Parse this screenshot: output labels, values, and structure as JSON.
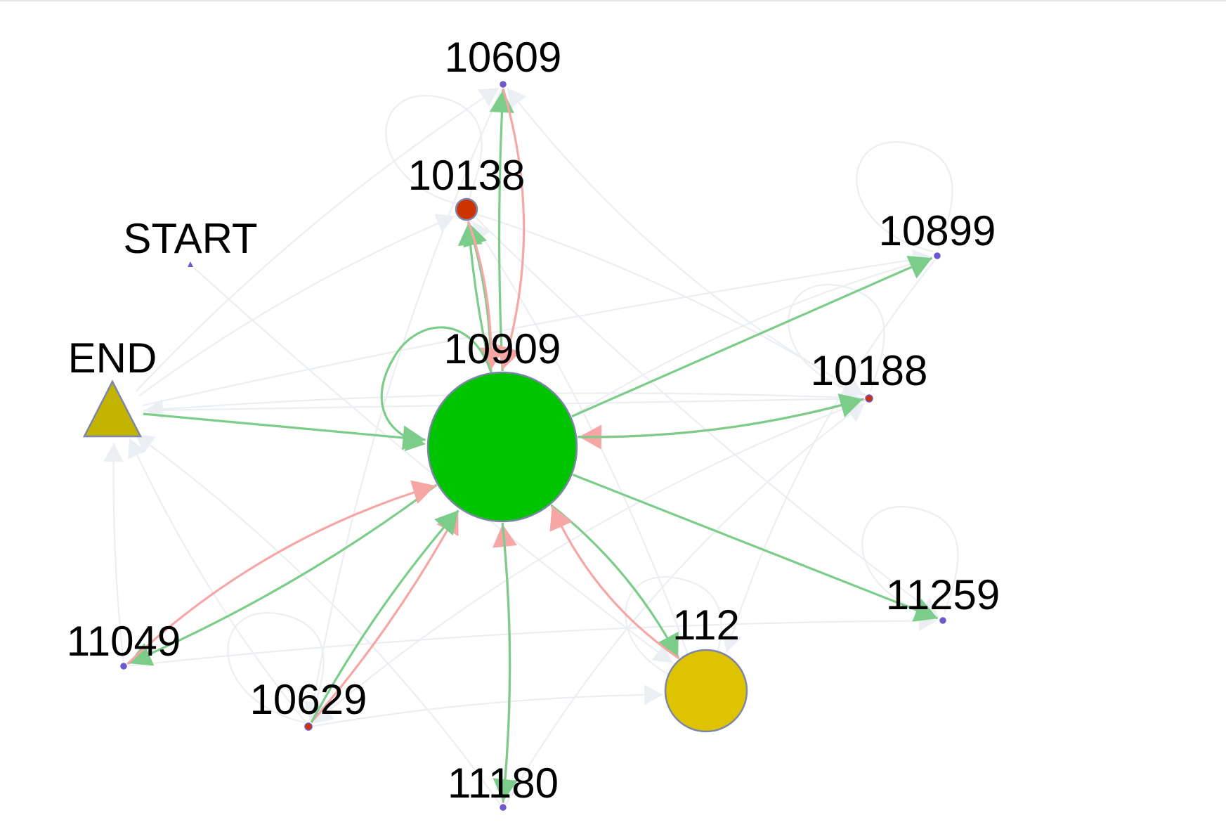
{
  "graph": {
    "nodes": [
      {
        "id": "10609",
        "label": "10609",
        "shape": "dot",
        "color": "#6a5acd"
      },
      {
        "id": "10138",
        "label": "10138",
        "shape": "circle",
        "color": "#cc3300"
      },
      {
        "id": "START",
        "label": "START",
        "shape": "triangle-small",
        "color": "#6a5acd"
      },
      {
        "id": "10899",
        "label": "10899",
        "shape": "dot",
        "color": "#6a5acd"
      },
      {
        "id": "END",
        "label": "END",
        "shape": "triangle",
        "color": "#c2b400"
      },
      {
        "id": "10909",
        "label": "10909",
        "shape": "circle",
        "color": "#00c400"
      },
      {
        "id": "10188",
        "label": "10188",
        "shape": "dot",
        "color": "#cc3300"
      },
      {
        "id": "11259",
        "label": "11259",
        "shape": "dot",
        "color": "#6a5acd"
      },
      {
        "id": "112",
        "label": "112",
        "shape": "circle",
        "color": "#dec400"
      },
      {
        "id": "11049",
        "label": "11049",
        "shape": "dot",
        "color": "#6a5acd"
      },
      {
        "id": "10629",
        "label": "10629",
        "shape": "dot",
        "color": "#cc3300"
      },
      {
        "id": "11180",
        "label": "11180",
        "shape": "dot",
        "color": "#6a5acd"
      }
    ],
    "edge_colors": {
      "green": "#7ccc8a",
      "red": "#f7a6a6",
      "faint": "#ebeef2"
    }
  }
}
